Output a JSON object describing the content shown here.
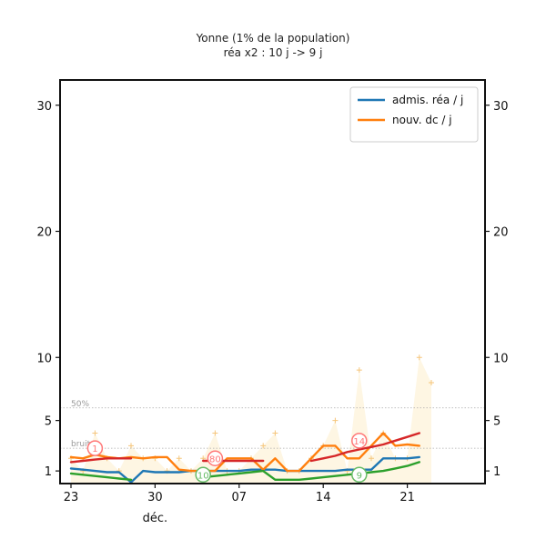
{
  "chart_data": {
    "type": "line",
    "title": "Yonne (1% de la population)",
    "subtitle": "réa x2 : 10 j -> 9 j",
    "xlabel": "",
    "ylabel": "",
    "ylim": [
      0,
      32
    ],
    "grid": false,
    "legend_position": "top-right",
    "y_ticks": [
      "1",
      "5",
      "10",
      "20",
      "30"
    ],
    "x_ticks": [
      "23",
      "30",
      "07",
      "14",
      "21"
    ],
    "x_sublabel": "déc.",
    "reference_lines": [
      {
        "label": "50%",
        "y": 6.0
      },
      {
        "label": "bruit",
        "y": 2.8
      }
    ],
    "series": [
      {
        "name": "admis. réa / j",
        "color": "#1f77b4",
        "days": [
          0,
          1,
          2,
          3,
          4,
          5,
          6,
          7,
          8,
          9,
          10,
          11,
          12,
          13,
          14,
          15,
          16,
          17,
          18,
          19,
          20,
          21,
          22,
          23,
          24,
          25,
          26,
          27,
          28,
          29
        ],
        "values": [
          1.2,
          1.1,
          1.0,
          0.9,
          0.9,
          0.1,
          1.0,
          0.9,
          0.9,
          0.9,
          1.0,
          1.0,
          1.0,
          1.0,
          1.0,
          1.1,
          1.1,
          1.1,
          1.0,
          1.0,
          1.0,
          1.0,
          1.0,
          1.1,
          1.1,
          1.1,
          2.0,
          2.0,
          2.0,
          2.1
        ]
      },
      {
        "name": "nouv. dc / j",
        "color": "#ff7f0e",
        "days": [
          0,
          1,
          2,
          3,
          4,
          5,
          6,
          7,
          8,
          9,
          10,
          11,
          12,
          13,
          14,
          15,
          16,
          17,
          18,
          19,
          20,
          21,
          22,
          23,
          24,
          25,
          26,
          27,
          28,
          29
        ],
        "values": [
          2.1,
          2.0,
          2.3,
          2.1,
          2.0,
          2.1,
          2.0,
          2.1,
          2.1,
          1.1,
          1.0,
          1.0,
          1.0,
          2.0,
          2.0,
          2.0,
          1.1,
          2.0,
          1.0,
          1.0,
          2.0,
          3.0,
          3.0,
          2.0,
          2.0,
          3.0,
          4.0,
          3.0,
          3.1,
          3.0
        ]
      },
      {
        "name": "",
        "color": "#d62728",
        "days": [
          0,
          1,
          2,
          3,
          4,
          5,
          11,
          12,
          13,
          14,
          15,
          16,
          20,
          21,
          22,
          23,
          24,
          25,
          26,
          27,
          28,
          29
        ],
        "values": [
          1.7,
          1.8,
          1.9,
          2.0,
          2.0,
          2.0,
          1.8,
          1.8,
          1.8,
          1.8,
          1.8,
          1.8,
          1.8,
          2.0,
          2.2,
          2.5,
          2.7,
          2.9,
          3.1,
          3.4,
          3.7,
          4.0
        ]
      },
      {
        "name": "",
        "color": "#2ca02c",
        "days": [
          0,
          1,
          2,
          3,
          4,
          5,
          11,
          12,
          13,
          14,
          15,
          16,
          17,
          18,
          19,
          20,
          21,
          22,
          23,
          24,
          25,
          26,
          27,
          28,
          29
        ],
        "values": [
          0.8,
          0.7,
          0.6,
          0.5,
          0.4,
          0.3,
          0.5,
          0.6,
          0.7,
          0.8,
          0.9,
          1.0,
          0.3,
          0.3,
          0.3,
          0.4,
          0.5,
          0.6,
          0.7,
          0.8,
          0.9,
          1.0,
          1.2,
          1.4,
          1.7
        ]
      }
    ],
    "background_daily": {
      "color": "#fcebc0",
      "days": [
        0,
        1,
        2,
        3,
        4,
        5,
        6,
        7,
        8,
        9,
        10,
        11,
        12,
        13,
        14,
        15,
        16,
        17,
        18,
        19,
        20,
        21,
        22,
        23,
        24,
        25,
        26,
        27,
        28,
        29,
        30
      ],
      "values": [
        2,
        1,
        4,
        2,
        1,
        3,
        2,
        2,
        1,
        2,
        1,
        2,
        4,
        1,
        1,
        2,
        3,
        4,
        1,
        1,
        2,
        3,
        5,
        1,
        9,
        2,
        4,
        2,
        2,
        10,
        8
      ]
    },
    "annotations": [
      {
        "text": "1",
        "day": 2,
        "y": 2.8,
        "color": "#ff7777"
      },
      {
        "text": "80",
        "day": 12,
        "y": 2.0,
        "color": "#ff7777"
      },
      {
        "text": "10",
        "day": 11,
        "y": 0.7,
        "color": "#66bb66"
      },
      {
        "text": "14",
        "day": 24,
        "y": 3.4,
        "color": "#ff7777"
      },
      {
        "text": "9",
        "day": 24,
        "y": 0.7,
        "color": "#66bb66"
      }
    ]
  }
}
